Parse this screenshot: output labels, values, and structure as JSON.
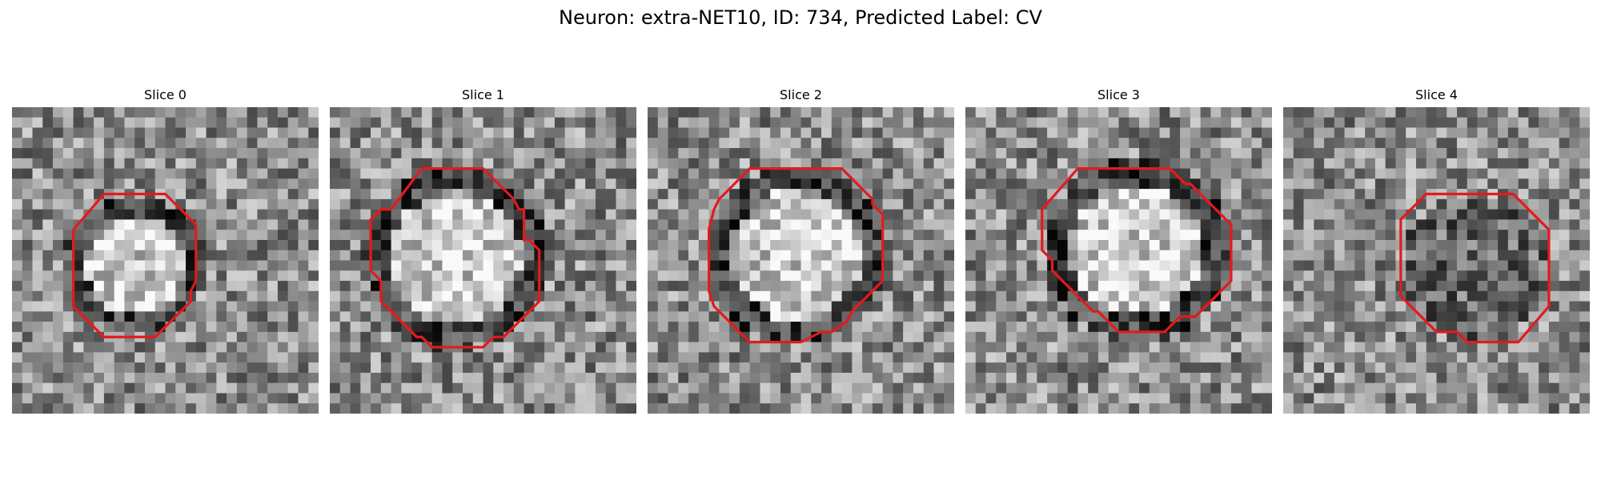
{
  "figure": {
    "title": "Neuron: extra-NET10, ID: 734, Predicted Label: CV"
  },
  "slices": [
    {
      "title": "Slice 0",
      "pattern": "ring-light-center",
      "seed": 11
    },
    {
      "title": "Slice 1",
      "pattern": "ring-light-center",
      "seed": 23
    },
    {
      "title": "Slice 2",
      "pattern": "ring-light-center",
      "seed": 37
    },
    {
      "title": "Slice 3",
      "pattern": "ring-light-center",
      "seed": 41
    },
    {
      "title": "Slice 4",
      "pattern": "dark-center",
      "seed": 53
    }
  ],
  "style": {
    "contour_color": "#e41a1c"
  }
}
